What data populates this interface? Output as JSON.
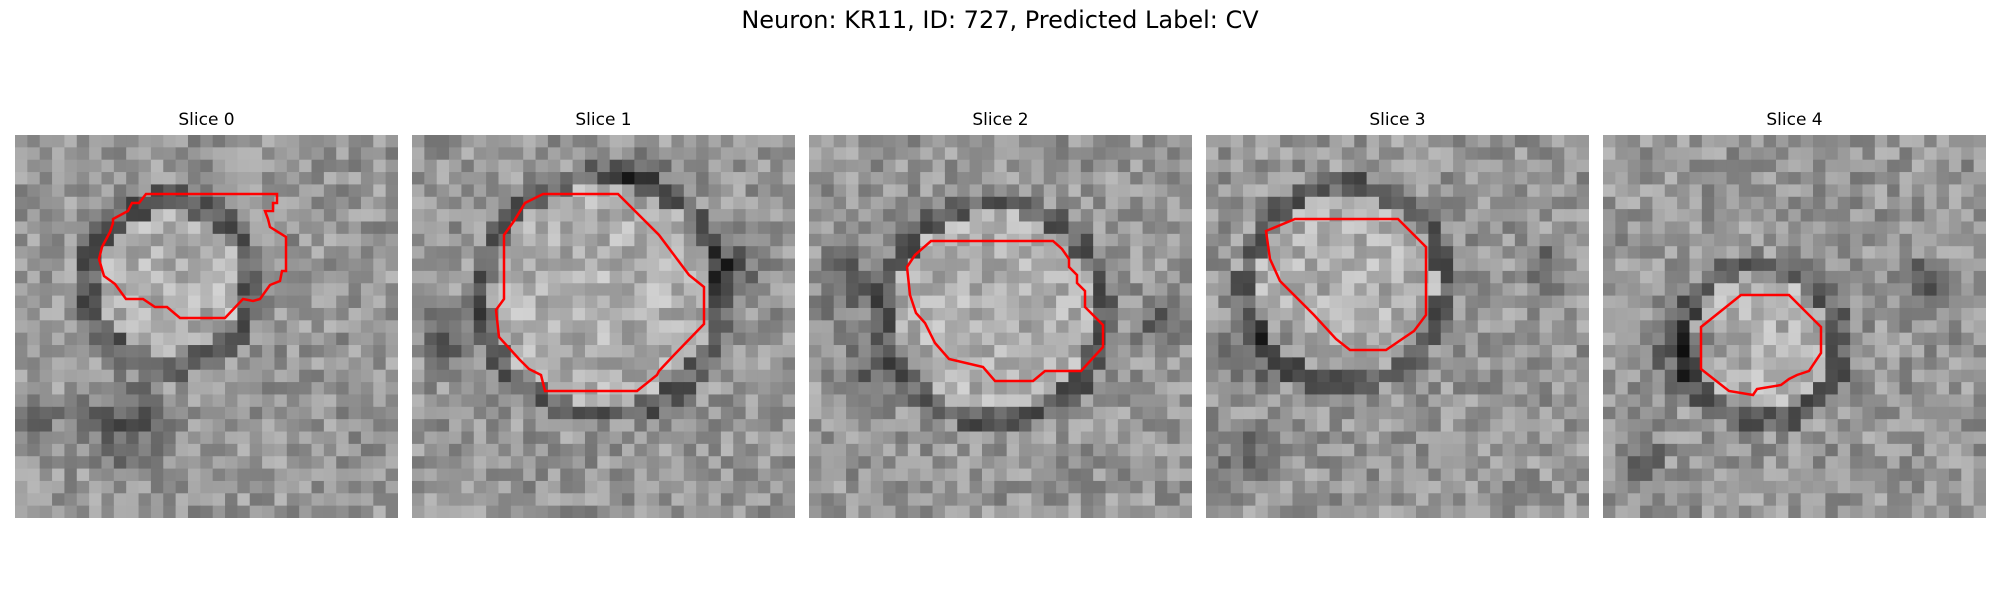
{
  "figure": {
    "title": "Neuron: KR11, ID: 727, Predicted Label: CV"
  },
  "slices": [
    {
      "title": "Slice 0"
    },
    {
      "title": "Slice 1"
    },
    {
      "title": "Slice 2"
    },
    {
      "title": "Slice 3"
    },
    {
      "title": "Slice 4"
    }
  ],
  "colors": {
    "contour": "#ff0000",
    "colormap": "gray",
    "background": "#ffffff"
  }
}
